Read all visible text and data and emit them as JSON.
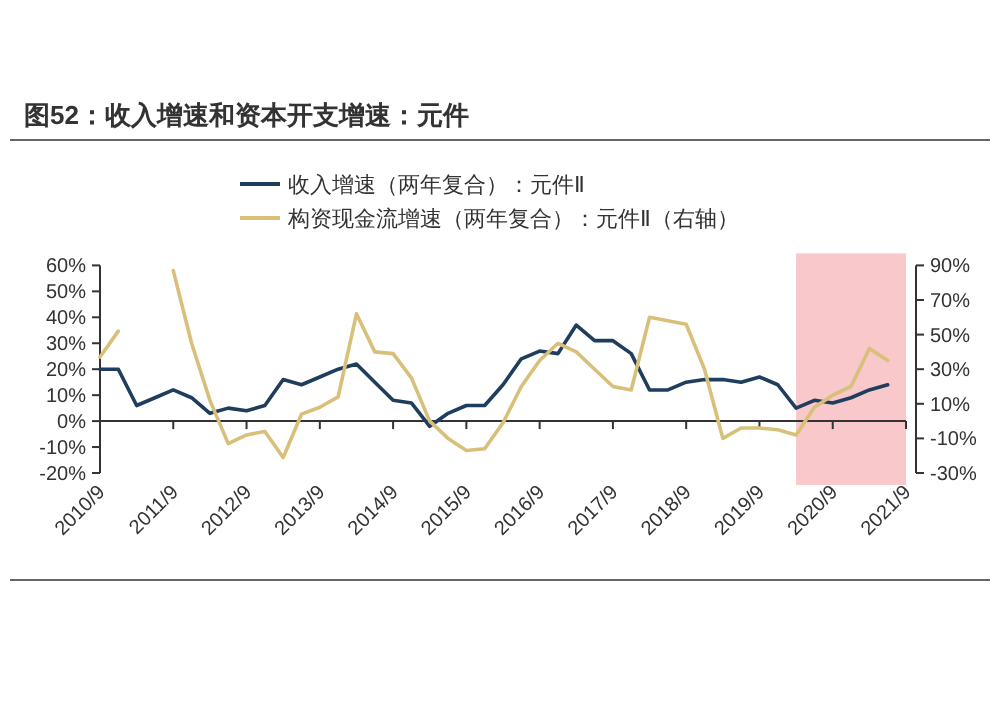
{
  "chart_data": {
    "type": "line",
    "title": "图52：收入增速和资本开支增速：元件",
    "x": [
      "2010-09",
      "2010-12",
      "2011-03",
      "2011-06",
      "2011-09",
      "2011-12",
      "2012-03",
      "2012-06",
      "2012-09",
      "2012-12",
      "2013-03",
      "2013-06",
      "2013-09",
      "2013-12",
      "2014-03",
      "2014-06",
      "2014-09",
      "2014-12",
      "2015-03",
      "2015-06",
      "2015-09",
      "2015-12",
      "2016-03",
      "2016-06",
      "2016-09",
      "2016-12",
      "2017-03",
      "2017-06",
      "2017-09",
      "2017-12",
      "2018-03",
      "2018-06",
      "2018-09",
      "2018-12",
      "2019-03",
      "2019-06",
      "2019-09",
      "2019-12",
      "2020-03",
      "2020-06",
      "2020-09",
      "2020-12",
      "2021-03",
      "2021-06"
    ],
    "series": [
      {
        "name": "收入增速（两年复合）：元件Ⅱ",
        "color": "#1f3d5c",
        "values": [
          20,
          20,
          6,
          9,
          12,
          9,
          3,
          5,
          4,
          6,
          16,
          14,
          17,
          20,
          22,
          15,
          8,
          7,
          -2,
          3,
          6,
          6,
          14,
          24,
          27,
          26,
          37,
          31,
          31,
          26,
          12,
          12,
          15,
          16,
          16,
          15,
          17,
          14,
          5,
          8,
          7,
          9,
          12,
          14
        ]
      },
      {
        "name": "构资现金流增速（两年复合）：元件Ⅱ（右轴）",
        "color": "#d8c07a",
        "axis": "y2",
        "values": [
          37,
          52,
          null,
          null,
          87,
          45,
          12,
          -13,
          -8,
          -6,
          -21,
          4,
          8,
          14,
          62,
          40,
          39,
          25,
          0,
          -10,
          -17,
          -16,
          -1,
          20,
          35,
          45,
          40,
          30,
          20,
          18,
          60,
          58,
          56,
          30,
          -10,
          -4,
          -4,
          -5,
          -8,
          8,
          15,
          20,
          42,
          35
        ]
      }
    ],
    "xlim": [
      "2010-09",
      "2021-09"
    ],
    "xticks": [
      {
        "value": "2010-09",
        "label": "2010/9"
      },
      {
        "value": "2011-09",
        "label": "2011/9"
      },
      {
        "value": "2012-09",
        "label": "2012/9"
      },
      {
        "value": "2013-09",
        "label": "2013/9"
      },
      {
        "value": "2014-09",
        "label": "2014/9"
      },
      {
        "value": "2015-09",
        "label": "2015/9"
      },
      {
        "value": "2016-09",
        "label": "2016/9"
      },
      {
        "value": "2017-09",
        "label": "2017/9"
      },
      {
        "value": "2018-09",
        "label": "2018/9"
      },
      {
        "value": "2019-09",
        "label": "2019/9"
      },
      {
        "value": "2020-09",
        "label": "2020/9"
      },
      {
        "value": "2021-09",
        "label": "2021/9"
      }
    ],
    "ylim": [
      -20,
      60
    ],
    "yticks": [
      {
        "value": -20,
        "label": "-20%"
      },
      {
        "value": -10,
        "label": "-10%"
      },
      {
        "value": 0,
        "label": "0%"
      },
      {
        "value": 10,
        "label": "10%"
      },
      {
        "value": 20,
        "label": "20%"
      },
      {
        "value": 30,
        "label": "30%"
      },
      {
        "value": 40,
        "label": "40%"
      },
      {
        "value": 50,
        "label": "50%"
      },
      {
        "value": 60,
        "label": "60%"
      }
    ],
    "y2lim": [
      -30,
      90
    ],
    "y2ticks": [
      {
        "value": -30,
        "label": "-30%"
      },
      {
        "value": -10,
        "label": "-10%"
      },
      {
        "value": 10,
        "label": "10%"
      },
      {
        "value": 30,
        "label": "30%"
      },
      {
        "value": 50,
        "label": "50%"
      },
      {
        "value": 70,
        "label": "70%"
      },
      {
        "value": 90,
        "label": "90%"
      }
    ],
    "bands": [
      {
        "axis": "x",
        "from": "2020-03",
        "to": "2021-09",
        "color": "#f9c8cb"
      }
    ],
    "legend": "top"
  }
}
